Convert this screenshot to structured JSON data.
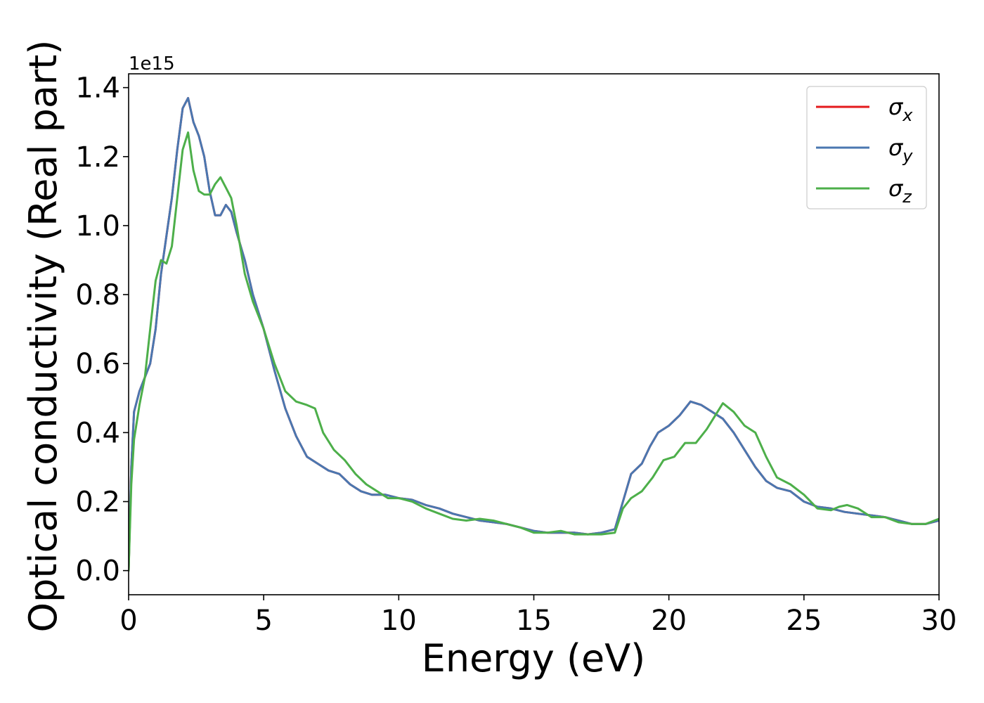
{
  "chart_data": {
    "type": "line",
    "xlabel": "Energy (eV)",
    "ylabel": "Optical conductivity (Real part)",
    "y_offset_label": "1e15",
    "xlim": [
      0,
      30
    ],
    "ylim": [
      -0.07,
      1.44
    ],
    "x_ticks": [
      0,
      5,
      10,
      15,
      20,
      25,
      30
    ],
    "x_tick_labels": [
      "0",
      "5",
      "10",
      "15",
      "20",
      "25",
      "30"
    ],
    "y_ticks": [
      0.0,
      0.2,
      0.4,
      0.6,
      0.8,
      1.0,
      1.2,
      1.4
    ],
    "y_tick_labels": [
      "0.0",
      "0.2",
      "0.4",
      "0.6",
      "0.8",
      "1.0",
      "1.2",
      "1.4"
    ],
    "grid": false,
    "legend_position": "top-right",
    "series": [
      {
        "name": "σx",
        "legend_base": "σ",
        "legend_sub": "x",
        "color": "#e41a1c",
        "x": [
          0,
          0.1,
          0.2,
          0.4,
          0.6,
          0.8,
          1.0,
          1.2,
          1.4,
          1.6,
          1.8,
          2.0,
          2.2,
          2.4,
          2.6,
          2.8,
          3.0,
          3.2,
          3.4,
          3.6,
          3.8,
          4.0,
          4.3,
          4.6,
          5.0,
          5.4,
          5.8,
          6.2,
          6.6,
          7.0,
          7.4,
          7.8,
          8.2,
          8.6,
          9.0,
          9.5,
          10.0,
          10.5,
          11.0,
          11.5,
          12.0,
          12.5,
          13.0,
          13.5,
          14.0,
          14.5,
          15.0,
          15.5,
          16.0,
          16.5,
          17.0,
          17.5,
          18.0,
          18.3,
          18.6,
          19.0,
          19.3,
          19.6,
          20.0,
          20.4,
          20.8,
          21.2,
          21.6,
          22.0,
          22.4,
          22.8,
          23.2,
          23.6,
          24.0,
          24.5,
          25.0,
          25.5,
          26.0,
          26.5,
          27.0,
          27.5,
          28.0,
          28.5,
          29.0,
          29.5,
          30.0
        ],
        "y": [
          0.0,
          0.3,
          0.46,
          0.52,
          0.56,
          0.6,
          0.7,
          0.86,
          0.97,
          1.08,
          1.22,
          1.34,
          1.37,
          1.3,
          1.26,
          1.2,
          1.1,
          1.03,
          1.03,
          1.06,
          1.04,
          0.98,
          0.9,
          0.8,
          0.7,
          0.58,
          0.47,
          0.39,
          0.33,
          0.31,
          0.29,
          0.28,
          0.25,
          0.23,
          0.22,
          0.22,
          0.21,
          0.205,
          0.19,
          0.18,
          0.165,
          0.155,
          0.145,
          0.14,
          0.135,
          0.125,
          0.115,
          0.11,
          0.11,
          0.11,
          0.105,
          0.11,
          0.12,
          0.2,
          0.28,
          0.31,
          0.36,
          0.4,
          0.42,
          0.45,
          0.49,
          0.48,
          0.46,
          0.44,
          0.4,
          0.35,
          0.3,
          0.26,
          0.24,
          0.23,
          0.2,
          0.185,
          0.18,
          0.17,
          0.165,
          0.16,
          0.155,
          0.145,
          0.135,
          0.135,
          0.145
        ]
      },
      {
        "name": "σy",
        "legend_base": "σ",
        "legend_sub": "y",
        "color": "#4a77b0",
        "x": [
          0,
          0.1,
          0.2,
          0.4,
          0.6,
          0.8,
          1.0,
          1.2,
          1.4,
          1.6,
          1.8,
          2.0,
          2.2,
          2.4,
          2.6,
          2.8,
          3.0,
          3.2,
          3.4,
          3.6,
          3.8,
          4.0,
          4.3,
          4.6,
          5.0,
          5.4,
          5.8,
          6.2,
          6.6,
          7.0,
          7.4,
          7.8,
          8.2,
          8.6,
          9.0,
          9.5,
          10.0,
          10.5,
          11.0,
          11.5,
          12.0,
          12.5,
          13.0,
          13.5,
          14.0,
          14.5,
          15.0,
          15.5,
          16.0,
          16.5,
          17.0,
          17.5,
          18.0,
          18.3,
          18.6,
          19.0,
          19.3,
          19.6,
          20.0,
          20.4,
          20.8,
          21.2,
          21.6,
          22.0,
          22.4,
          22.8,
          23.2,
          23.6,
          24.0,
          24.5,
          25.0,
          25.5,
          26.0,
          26.5,
          27.0,
          27.5,
          28.0,
          28.5,
          29.0,
          29.5,
          30.0
        ],
        "y": [
          0.0,
          0.3,
          0.46,
          0.52,
          0.56,
          0.6,
          0.7,
          0.86,
          0.97,
          1.08,
          1.22,
          1.34,
          1.37,
          1.3,
          1.26,
          1.2,
          1.1,
          1.03,
          1.03,
          1.06,
          1.04,
          0.98,
          0.9,
          0.8,
          0.7,
          0.58,
          0.47,
          0.39,
          0.33,
          0.31,
          0.29,
          0.28,
          0.25,
          0.23,
          0.22,
          0.22,
          0.21,
          0.205,
          0.19,
          0.18,
          0.165,
          0.155,
          0.145,
          0.14,
          0.135,
          0.125,
          0.115,
          0.11,
          0.11,
          0.11,
          0.105,
          0.11,
          0.12,
          0.2,
          0.28,
          0.31,
          0.36,
          0.4,
          0.42,
          0.45,
          0.49,
          0.48,
          0.46,
          0.44,
          0.4,
          0.35,
          0.3,
          0.26,
          0.24,
          0.23,
          0.2,
          0.185,
          0.18,
          0.17,
          0.165,
          0.16,
          0.155,
          0.145,
          0.135,
          0.135,
          0.145
        ]
      },
      {
        "name": "σz",
        "legend_base": "σ",
        "legend_sub": "z",
        "color": "#4daf4a",
        "x": [
          0,
          0.1,
          0.2,
          0.4,
          0.6,
          0.8,
          1.0,
          1.2,
          1.4,
          1.6,
          1.8,
          2.0,
          2.2,
          2.4,
          2.6,
          2.8,
          3.0,
          3.2,
          3.4,
          3.6,
          3.8,
          4.0,
          4.3,
          4.6,
          5.0,
          5.4,
          5.8,
          6.2,
          6.6,
          6.9,
          7.2,
          7.6,
          8.0,
          8.4,
          8.8,
          9.2,
          9.6,
          10.0,
          10.5,
          11.0,
          11.5,
          12.0,
          12.5,
          13.0,
          13.5,
          14.0,
          14.5,
          15.0,
          15.5,
          16.0,
          16.5,
          17.0,
          17.5,
          18.0,
          18.3,
          18.6,
          19.0,
          19.4,
          19.8,
          20.2,
          20.6,
          21.0,
          21.4,
          21.8,
          22.0,
          22.4,
          22.8,
          23.2,
          23.6,
          24.0,
          24.5,
          25.0,
          25.5,
          26.0,
          26.3,
          26.6,
          27.0,
          27.5,
          28.0,
          28.5,
          29.0,
          29.5,
          30.0
        ],
        "y": [
          0.0,
          0.25,
          0.38,
          0.48,
          0.56,
          0.7,
          0.84,
          0.9,
          0.89,
          0.94,
          1.08,
          1.22,
          1.27,
          1.16,
          1.1,
          1.09,
          1.09,
          1.12,
          1.14,
          1.11,
          1.08,
          1.0,
          0.86,
          0.78,
          0.7,
          0.6,
          0.52,
          0.49,
          0.48,
          0.47,
          0.4,
          0.35,
          0.32,
          0.28,
          0.25,
          0.23,
          0.21,
          0.21,
          0.2,
          0.18,
          0.165,
          0.15,
          0.145,
          0.15,
          0.145,
          0.135,
          0.125,
          0.11,
          0.11,
          0.115,
          0.105,
          0.105,
          0.105,
          0.11,
          0.18,
          0.21,
          0.23,
          0.27,
          0.32,
          0.33,
          0.37,
          0.37,
          0.41,
          0.46,
          0.485,
          0.46,
          0.42,
          0.4,
          0.33,
          0.27,
          0.25,
          0.22,
          0.18,
          0.175,
          0.185,
          0.19,
          0.18,
          0.155,
          0.155,
          0.14,
          0.135,
          0.135,
          0.15
        ]
      }
    ]
  }
}
